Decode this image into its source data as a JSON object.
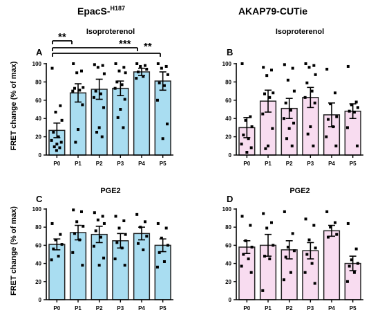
{
  "figure": {
    "title_epacs": "EpacS-",
    "title_epacs_sup": "H187",
    "title_akap": "AKAP79-CUTie"
  },
  "significance": {
    "stars": [
      "**",
      "***",
      "**"
    ]
  },
  "colors": {
    "epacs_fill": "#a9ddf1",
    "akap_fill": "#f8dcf0",
    "bar_stroke": "#222222"
  },
  "chart_data": [
    {
      "id": "A",
      "type": "bar",
      "letter": "A",
      "title": "Isoproterenol",
      "ylabel": "FRET change (% of max)",
      "ylim": [
        0,
        100
      ],
      "yticks": [
        0,
        20,
        40,
        60,
        80,
        100
      ],
      "categories": [
        "P0",
        "P1",
        "P2",
        "P3",
        "P4",
        "P5"
      ],
      "values": [
        27,
        68,
        72,
        73,
        91,
        81
      ],
      "errors": [
        8,
        10,
        11,
        8,
        4,
        10
      ],
      "points": [
        [
          95,
          54,
          47,
          38,
          25,
          20,
          16,
          14,
          12,
          9,
          8,
          5
        ],
        [
          100,
          92,
          90,
          74,
          73,
          71,
          70,
          55,
          28,
          14
        ],
        [
          99,
          98,
          96,
          89,
          70,
          67,
          63,
          52,
          30,
          25,
          20
        ],
        [
          100,
          96,
          92,
          90,
          80,
          77,
          73,
          61,
          50,
          41,
          30
        ],
        [
          100,
          98,
          97,
          94,
          91,
          86,
          84
        ],
        [
          100,
          97,
          95,
          88,
          79,
          76,
          60,
          34,
          18
        ]
      ]
    },
    {
      "id": "B",
      "type": "bar",
      "letter": "B",
      "title": "Isoproterenol",
      "ylabel": "",
      "ylim": [
        0,
        100
      ],
      "yticks": [
        0,
        20,
        40,
        60,
        80,
        100
      ],
      "categories": [
        "P0",
        "P1",
        "P2",
        "P3",
        "P4",
        "P5"
      ],
      "values": [
        30,
        59,
        51,
        63,
        44,
        48
      ],
      "errors": [
        11,
        12,
        11,
        11,
        13,
        8
      ],
      "points": [
        [
          100,
          42,
          38,
          31,
          22,
          18,
          12,
          8,
          3
        ],
        [
          96,
          93,
          87,
          68,
          67,
          63,
          45,
          29,
          10,
          7
        ],
        [
          99,
          95,
          82,
          70,
          57,
          49,
          40,
          35,
          29,
          18,
          10
        ],
        [
          100,
          98,
          96,
          88,
          79,
          70,
          63,
          57,
          31,
          23,
          10
        ],
        [
          94,
          68,
          56,
          42,
          39,
          31,
          20,
          10
        ],
        [
          97,
          58,
          55,
          52,
          48,
          47,
          30,
          10
        ]
      ]
    },
    {
      "id": "C",
      "type": "bar",
      "letter": "C",
      "title": "PGE2",
      "ylabel": "FRET change (% of max)",
      "ylim": [
        0,
        100
      ],
      "yticks": [
        0,
        20,
        40,
        60,
        80,
        100
      ],
      "categories": [
        "P0",
        "P1",
        "P2",
        "P3",
        "P4",
        "P5"
      ],
      "values": [
        61,
        74,
        72,
        65,
        73,
        60
      ],
      "errors": [
        6,
        8,
        9,
        8,
        7,
        7
      ],
      "points": [
        [
          84,
          72,
          66,
          61,
          56,
          48,
          44
        ],
        [
          99,
          97,
          86,
          81,
          73,
          66,
          52,
          38
        ],
        [
          96,
          92,
          88,
          84,
          76,
          69,
          59,
          46,
          38
        ],
        [
          92,
          87,
          79,
          72,
          63,
          57,
          45,
          38
        ],
        [
          94,
          86,
          80,
          70,
          62,
          55
        ],
        [
          84,
          79,
          68,
          60,
          52,
          42,
          36
        ]
      ]
    },
    {
      "id": "D",
      "type": "bar",
      "letter": "D",
      "title": "PGE2",
      "ylabel": "",
      "ylim": [
        0,
        100
      ],
      "yticks": [
        0,
        20,
        40,
        60,
        80,
        100
      ],
      "categories": [
        "P0",
        "P1",
        "P2",
        "P3",
        "P4",
        "P5"
      ],
      "values": [
        58,
        60,
        55,
        54,
        76,
        40
      ],
      "errors": [
        7,
        12,
        10,
        9,
        6,
        8
      ],
      "points": [
        [
          92,
          82,
          65,
          58,
          50,
          45,
          37,
          30
        ],
        [
          95,
          85,
          79,
          60,
          48,
          45,
          10
        ],
        [
          97,
          73,
          58,
          54,
          47,
          30,
          22
        ],
        [
          89,
          82,
          66,
          57,
          50,
          40,
          30,
          18
        ],
        [
          97,
          85,
          80,
          72,
          69
        ],
        [
          84,
          56,
          44,
          40,
          37,
          30,
          20
        ]
      ]
    }
  ]
}
